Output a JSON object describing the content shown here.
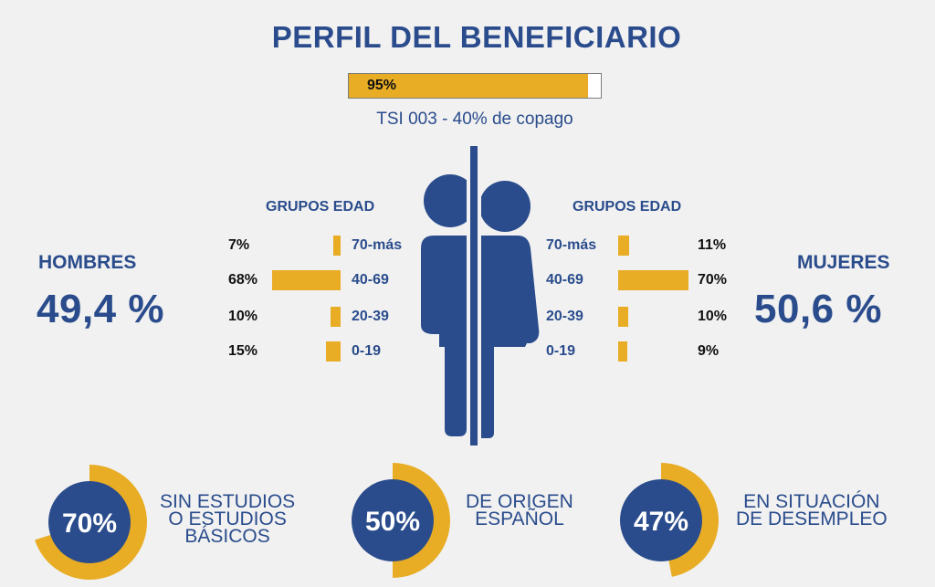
{
  "title": "PERFIL DEL BENEFICIARIO",
  "progress": {
    "value": 0.95,
    "label": "95%"
  },
  "subtitle": "TSI 003 - 40% de copago",
  "colors": {
    "navy": "#2a4c8c",
    "gold": "#e8ad25",
    "background": "#f1f1f1"
  },
  "icons": {
    "center": "male-female-restroom-icon"
  },
  "men": {
    "label": "HOMBRES",
    "percent": "49,4 %",
    "groups_title": "GRUPOS EDAD"
  },
  "women": {
    "label": "MUJERES",
    "percent": "50,6 %",
    "groups_title": "GRUPOS EDAD"
  },
  "chart_data": [
    {
      "type": "bar",
      "categories": [
        "70-más",
        "40-69",
        "20-39",
        "0-19"
      ],
      "values": [
        7,
        68,
        10,
        15
      ],
      "labels": [
        "7%",
        "68%",
        "10%",
        "15%"
      ],
      "title": "GRUPOS EDAD"
    },
    {
      "type": "bar",
      "categories": [
        "70-más",
        "40-69",
        "20-39",
        "0-19"
      ],
      "values": [
        11,
        70,
        10,
        9
      ],
      "labels": [
        "11%",
        "70%",
        "10%",
        "9%"
      ],
      "title": "GRUPOS EDAD"
    },
    {
      "type": "pie",
      "items": [
        {
          "value": 70,
          "label": "70%",
          "caption": [
            "SIN ESTUDIOS",
            "O ESTUDIOS",
            "BÁSICOS"
          ]
        },
        {
          "value": 50,
          "label": "50%",
          "caption": [
            "DE ORIGEN",
            "ESPAÑOL"
          ]
        },
        {
          "value": 47,
          "label": "47%",
          "caption": [
            "EN SITUACIÓN",
            "DE DESEMPLEO"
          ]
        }
      ]
    }
  ]
}
